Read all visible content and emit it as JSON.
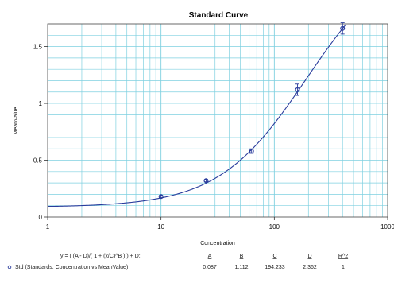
{
  "chart_data": {
    "type": "scatter",
    "title": "Standard Curve",
    "xlabel": "Concentration",
    "ylabel": "MeanValue",
    "x_scale": "log",
    "xlim": [
      1,
      1000
    ],
    "ylim": [
      0,
      1.7
    ],
    "x_tick_labels": [
      "1",
      "10",
      "100",
      "1000"
    ],
    "y_tick_labels": [
      "0",
      "0.5",
      "1",
      "1.5"
    ],
    "y_ticks": [
      0,
      0.5,
      1,
      1.5
    ],
    "x_ticks": [
      1,
      10,
      100,
      1000
    ],
    "grid": true,
    "grid_color": "#7fd0e0",
    "curve_color": "#2a3c9c",
    "point_color": "#2a3c9c",
    "fit_params": {
      "A": 0.087,
      "B": 1.112,
      "C": 194.233,
      "D": 2.362
    },
    "series": [
      {
        "name": "Std (Standards: Concentration vs MeanValue)",
        "x": [
          10,
          25,
          63,
          160,
          400
        ],
        "y": [
          0.18,
          0.32,
          0.58,
          1.12,
          1.66
        ],
        "err": [
          0.01,
          0.01,
          0.02,
          0.05,
          0.05
        ]
      }
    ]
  },
  "equation": {
    "text": "y = ( (A - D)/( 1 + (x/C)^B ) ) + D:",
    "headers": [
      "A",
      "B",
      "C",
      "D",
      "R^2"
    ],
    "legend_label": "Std (Standards: Concentration vs MeanValue)",
    "values": [
      "0.087",
      "1.112",
      "194.233",
      "2.362",
      "1"
    ]
  }
}
